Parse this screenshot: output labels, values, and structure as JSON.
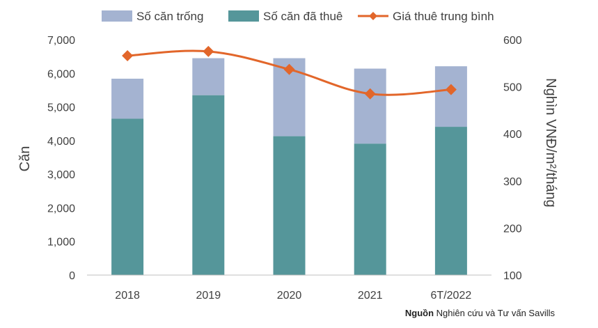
{
  "chart_data": {
    "type": "bar",
    "stacked": true,
    "categories": [
      "2018",
      "2019",
      "2020",
      "2021",
      "6T/2022"
    ],
    "series": [
      {
        "name": "Số căn đã thuê",
        "kind": "bar",
        "axis": "left",
        "color": "#55969a",
        "values": [
          4650,
          5350,
          4130,
          3910,
          4410
        ]
      },
      {
        "name": "Số căn trống",
        "kind": "bar",
        "axis": "left",
        "color": "#a4b3d1",
        "values": [
          1190,
          1100,
          2320,
          2230,
          1800
        ]
      },
      {
        "name": "Giá thuê trung bình",
        "kind": "line",
        "axis": "right",
        "color": "#e2662a",
        "values": [
          566,
          575,
          537,
          485,
          494
        ]
      }
    ],
    "legend_order": [
      "Số căn trống",
      "Số căn đã thuê",
      "Giá thuê trung bình"
    ],
    "ylabel": "Căn",
    "y2label": "Nghìn VNĐ/m²/tháng",
    "ylim": [
      0,
      7000
    ],
    "y2lim": [
      100,
      600
    ],
    "yticks": [
      "0",
      "1,000",
      "2,000",
      "3,000",
      "4,000",
      "5,000",
      "6,000",
      "7,000"
    ],
    "y2ticks": [
      "100",
      "200",
      "300",
      "400",
      "500",
      "600"
    ],
    "legend_position": "top"
  },
  "source": {
    "label": "Nguồn",
    "text": "Nghiên cứu và Tư vấn Savills"
  }
}
